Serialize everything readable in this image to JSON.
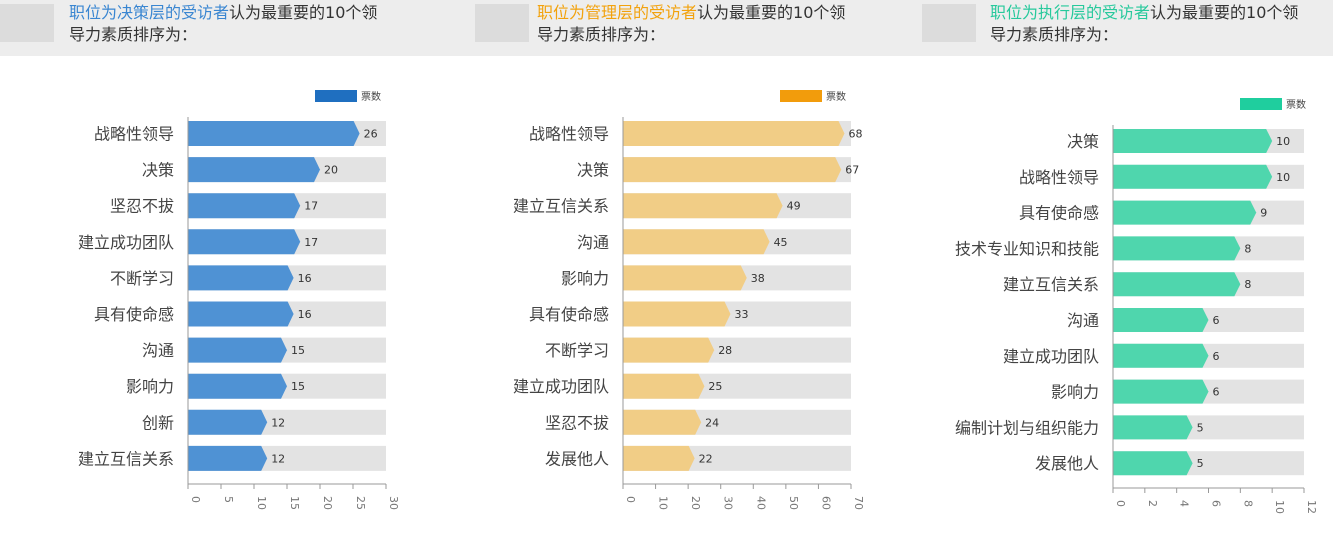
{
  "captions": [
    {
      "highlight": "职位为决策层的受访者",
      "rest": "认为最重要的10个领",
      "line2": "导力素质排序为：",
      "color": "#3a86d1"
    },
    {
      "highlight": "职位为管理层的受访者",
      "rest": "认为最重要的10个领",
      "line2": "导力素质排序为：",
      "color": "#f2a20d"
    },
    {
      "highlight": "职位为执行层的受访者",
      "rest": "认为最重要的10个领",
      "line2": "导力素质排序为：",
      "color": "#27c99c"
    }
  ],
  "colors": {
    "bg_bar": "#e3e3e3",
    "axis": "#999999",
    "label": "#444444"
  },
  "chart_data": [
    {
      "type": "bar",
      "orientation": "horizontal",
      "legend": "票数",
      "legend_color": "#1f6fc0",
      "bar_color": "#4f92d4",
      "categories": [
        "战略性领导",
        "决策",
        "坚忍不拔",
        "建立成功团队",
        "不断学习",
        "具有使命感",
        "沟通",
        "影响力",
        "创新",
        "建立互信关系"
      ],
      "values": [
        26,
        20,
        17,
        17,
        16,
        16,
        15,
        15,
        12,
        12
      ],
      "xlim": [
        0,
        30
      ],
      "ticks": [
        0,
        5,
        10,
        15,
        20,
        25,
        30
      ]
    },
    {
      "type": "bar",
      "orientation": "horizontal",
      "legend": "票数",
      "legend_color": "#f29c0c",
      "bar_color": "#f1cd86",
      "categories": [
        "战略性领导",
        "决策",
        "建立互信关系",
        "沟通",
        "影响力",
        "具有使命感",
        "不断学习",
        "建立成功团队",
        "坚忍不拔",
        "发展他人"
      ],
      "values": [
        68,
        67,
        49,
        45,
        38,
        33,
        28,
        25,
        24,
        22
      ],
      "xlim": [
        0,
        70
      ],
      "ticks": [
        0,
        10,
        20,
        30,
        40,
        50,
        60,
        70
      ]
    },
    {
      "type": "bar",
      "orientation": "horizontal",
      "legend": "票数",
      "legend_color": "#1fce9e",
      "bar_color": "#4fd6ad",
      "categories": [
        "决策",
        "战略性领导",
        "具有使命感",
        "技术专业知识和技能",
        "建立互信关系",
        "沟通",
        "建立成功团队",
        "影响力",
        "编制计划与组织能力",
        "发展他人"
      ],
      "values": [
        10,
        10,
        9,
        8,
        8,
        6,
        6,
        6,
        5,
        5
      ],
      "xlim": [
        0,
        12
      ],
      "ticks": [
        0,
        2,
        4,
        6,
        8,
        10,
        12
      ]
    }
  ]
}
